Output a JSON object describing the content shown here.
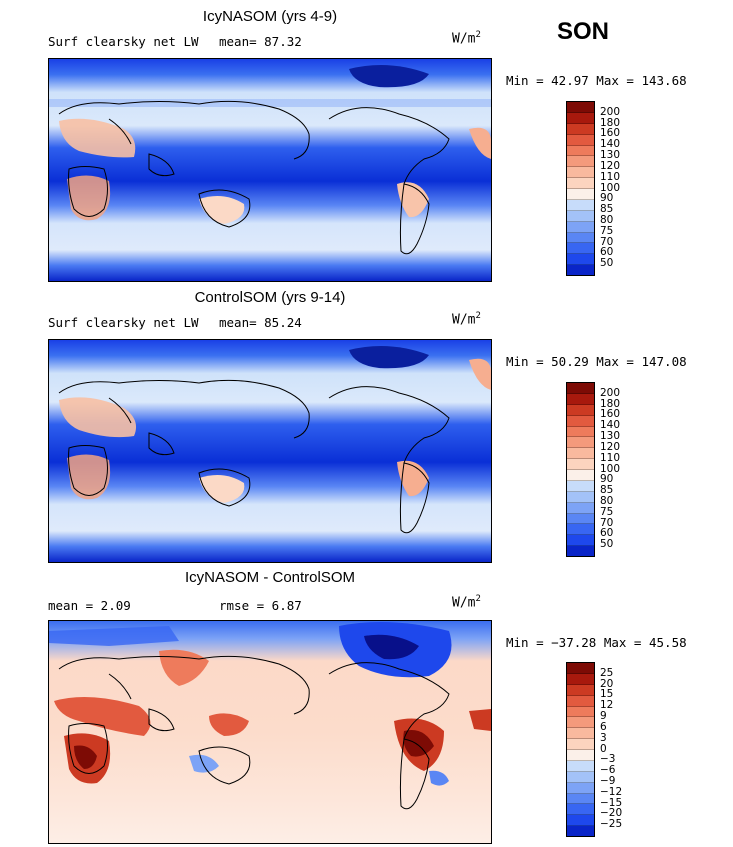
{
  "season": "SON",
  "units": {
    "base": "W/m",
    "exp": "2"
  },
  "colors": {
    "pos_scale": [
      "#08108a",
      "#0a25c8",
      "#1e48ec",
      "#3866f2",
      "#5a86f4",
      "#7da3f6",
      "#a3c2f8",
      "#c7dcfa",
      "#fbf0e9",
      "#fcd4bf",
      "#f9b99e",
      "#f49a7c",
      "#ee7b5c",
      "#e25a3f",
      "#cc3a22",
      "#a8190d",
      "#7d0b05"
    ],
    "ocean_deep": "#0a2fd6",
    "ocean_mid": "#3a70f0",
    "ocean_light": "#cfe2fa",
    "land_warm": "#f7b89a",
    "coast": "#000000"
  },
  "panels": [
    {
      "title": "IcyNASOM (yrs 4-9)",
      "left_label": "Surf clearsky net LW",
      "stat1": "mean=  87.32",
      "stat2": "",
      "minmax": "Min =  42.97 Max = 143.68",
      "ticks": [
        "200",
        "180",
        "160",
        "140",
        "130",
        "120",
        "110",
        "100",
        "90",
        "85",
        "80",
        "75",
        "70",
        "60",
        "50"
      ]
    },
    {
      "title": "ControlSOM (yrs 9-14)",
      "left_label": "Surf clearsky net LW",
      "stat1": "mean=  85.24",
      "stat2": "",
      "minmax": "Min =  50.29 Max = 147.08",
      "ticks": [
        "200",
        "180",
        "160",
        "140",
        "130",
        "120",
        "110",
        "100",
        "90",
        "85",
        "80",
        "75",
        "70",
        "60",
        "50"
      ]
    },
    {
      "title": "IcyNASOM - ControlSOM",
      "left_label": "mean =   2.09",
      "stat1": "rmse =   6.87",
      "stat2": "",
      "minmax": "Min = −37.28 Max =  45.58",
      "ticks": [
        "25",
        "20",
        "15",
        "12",
        "9",
        "6",
        "3",
        "0",
        "−3",
        "−6",
        "−9",
        "−12",
        "−15",
        "−20",
        "−25"
      ]
    }
  ]
}
